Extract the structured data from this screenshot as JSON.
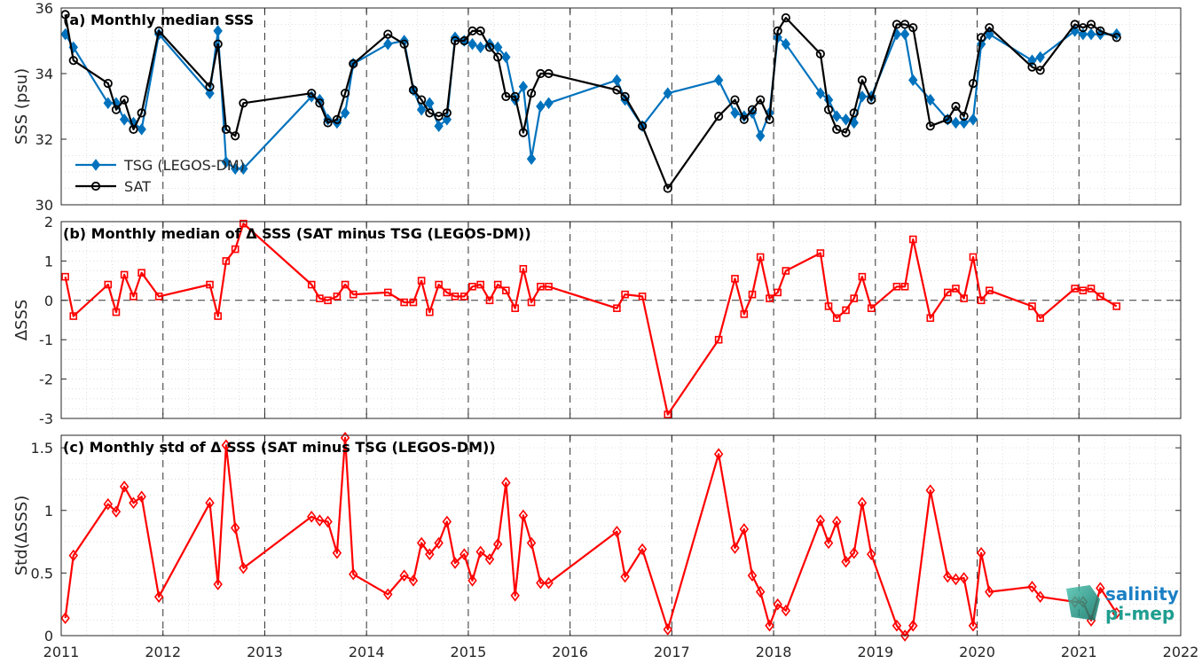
{
  "colors": {
    "tsg": "#0072BD",
    "sat": "#000000",
    "delta": "#FF0000",
    "grid": "#bfbfbf"
  },
  "logo": {
    "line1": "salinity",
    "line2": "pi-mep"
  },
  "chart_data": [
    {
      "type": "line",
      "title": "(a) Monthly median SSS",
      "ylabel": "SSS (psu)",
      "xlim": [
        2011,
        2022
      ],
      "ylim": [
        30,
        36
      ],
      "yticks": [
        30,
        32,
        34,
        36
      ],
      "legend": "bottom-left",
      "series": [
        {
          "name": "TSG (LEGOS-DM)",
          "marker": "diamond",
          "x": [
            2011.04,
            2011.12,
            2011.46,
            2011.54,
            2011.62,
            2011.71,
            2011.79,
            2011.96,
            2012.46,
            2012.54,
            2012.62,
            2012.71,
            2012.79,
            2013.46,
            2013.54,
            2013.62,
            2013.71,
            2013.79,
            2013.87,
            2014.21,
            2014.37,
            2014.46,
            2014.54,
            2014.62,
            2014.71,
            2014.79,
            2014.87,
            2014.96,
            2015.04,
            2015.12,
            2015.21,
            2015.29,
            2015.37,
            2015.46,
            2015.54,
            2015.62,
            2015.71,
            2015.79,
            2016.46,
            2016.54,
            2016.71,
            2016.96,
            2017.46,
            2017.62,
            2017.71,
            2017.79,
            2017.87,
            2017.96,
            2018.04,
            2018.12,
            2018.46,
            2018.54,
            2018.62,
            2018.71,
            2018.79,
            2018.87,
            2018.96,
            2019.21,
            2019.29,
            2019.37,
            2019.54,
            2019.71,
            2019.79,
            2019.87,
            2019.96,
            2020.04,
            2020.12,
            2020.54,
            2020.62,
            2020.96,
            2021.04,
            2021.12,
            2021.21,
            2021.37
          ],
          "y": [
            35.2,
            34.8,
            33.1,
            33.1,
            32.6,
            32.5,
            32.3,
            35.2,
            33.4,
            35.3,
            31.3,
            31.1,
            31.1,
            33.3,
            33.2,
            32.6,
            32.5,
            32.8,
            34.3,
            34.9,
            35.0,
            33.5,
            32.9,
            33.1,
            32.4,
            32.6,
            35.1,
            35.0,
            34.9,
            34.8,
            34.9,
            34.8,
            34.5,
            33.2,
            33.6,
            31.4,
            33.0,
            33.1,
            33.8,
            33.2,
            32.4,
            33.4,
            33.8,
            32.8,
            32.7,
            32.8,
            32.1,
            32.8,
            35.1,
            34.9,
            33.4,
            33.2,
            32.7,
            32.6,
            32.5,
            33.3,
            33.3,
            35.2,
            35.2,
            33.8,
            33.2,
            32.6,
            32.5,
            32.5,
            32.6,
            34.9,
            35.2,
            34.4,
            34.5,
            35.3,
            35.2,
            35.2,
            35.2,
            35.2
          ]
        },
        {
          "name": "SAT",
          "marker": "circle",
          "x": [
            2011.04,
            2011.12,
            2011.46,
            2011.54,
            2011.62,
            2011.71,
            2011.79,
            2011.96,
            2012.46,
            2012.54,
            2012.62,
            2012.71,
            2012.79,
            2013.46,
            2013.54,
            2013.62,
            2013.71,
            2013.79,
            2013.87,
            2014.21,
            2014.37,
            2014.46,
            2014.54,
            2014.62,
            2014.71,
            2014.79,
            2014.87,
            2014.96,
            2015.04,
            2015.12,
            2015.21,
            2015.29,
            2015.37,
            2015.46,
            2015.54,
            2015.62,
            2015.71,
            2015.79,
            2016.46,
            2016.54,
            2016.71,
            2016.96,
            2017.46,
            2017.62,
            2017.71,
            2017.79,
            2017.87,
            2017.96,
            2018.04,
            2018.12,
            2018.46,
            2018.54,
            2018.62,
            2018.71,
            2018.79,
            2018.87,
            2018.96,
            2019.21,
            2019.29,
            2019.37,
            2019.54,
            2019.71,
            2019.79,
            2019.87,
            2019.96,
            2020.04,
            2020.12,
            2020.54,
            2020.62,
            2020.96,
            2021.04,
            2021.12,
            2021.21,
            2021.37
          ],
          "y": [
            35.8,
            34.4,
            33.7,
            32.9,
            33.2,
            32.3,
            32.8,
            35.3,
            33.6,
            34.9,
            32.3,
            32.1,
            33.1,
            33.4,
            33.1,
            32.5,
            32.6,
            33.4,
            34.3,
            35.2,
            34.9,
            33.5,
            33.2,
            32.8,
            32.7,
            32.8,
            35.0,
            35.0,
            35.3,
            35.3,
            34.8,
            34.5,
            33.3,
            33.3,
            32.2,
            33.4,
            34.0,
            34.0,
            33.5,
            33.3,
            32.4,
            30.5,
            32.7,
            33.2,
            32.6,
            32.9,
            33.2,
            32.6,
            35.3,
            35.7,
            34.6,
            32.9,
            32.3,
            32.2,
            32.8,
            33.8,
            33.2,
            35.5,
            35.5,
            35.4,
            32.4,
            32.6,
            33.0,
            32.7,
            33.7,
            35.1,
            35.4,
            34.2,
            34.1,
            35.5,
            35.4,
            35.5,
            35.3,
            35.1
          ]
        }
      ]
    },
    {
      "type": "line",
      "title": "(b) Monthly median of Δ SSS (SAT minus TSG (LEGOS-DM))",
      "ylabel": "ΔSSS",
      "xlim": [
        2011,
        2022
      ],
      "ylim": [
        -3,
        2
      ],
      "yticks": [
        -3,
        -2,
        -1,
        0,
        1,
        2
      ],
      "reference_line": 0,
      "series": [
        {
          "name": "",
          "marker": "square",
          "x": [
            2011.04,
            2011.12,
            2011.46,
            2011.54,
            2011.62,
            2011.71,
            2011.79,
            2011.96,
            2012.46,
            2012.54,
            2012.62,
            2012.71,
            2012.79,
            2013.46,
            2013.54,
            2013.62,
            2013.71,
            2013.79,
            2013.87,
            2014.21,
            2014.37,
            2014.46,
            2014.54,
            2014.62,
            2014.71,
            2014.79,
            2014.87,
            2014.96,
            2015.04,
            2015.12,
            2015.21,
            2015.29,
            2015.37,
            2015.46,
            2015.54,
            2015.62,
            2015.71,
            2015.79,
            2016.46,
            2016.54,
            2016.71,
            2016.96,
            2017.46,
            2017.62,
            2017.71,
            2017.79,
            2017.87,
            2017.96,
            2018.04,
            2018.12,
            2018.46,
            2018.54,
            2018.62,
            2018.71,
            2018.79,
            2018.87,
            2018.96,
            2019.21,
            2019.29,
            2019.37,
            2019.54,
            2019.71,
            2019.79,
            2019.87,
            2019.96,
            2020.04,
            2020.12,
            2020.54,
            2020.62,
            2020.96,
            2021.04,
            2021.12,
            2021.21,
            2021.37
          ],
          "y": [
            0.6,
            -0.4,
            0.4,
            -0.3,
            0.65,
            0.1,
            0.7,
            0.1,
            0.4,
            -0.4,
            1.0,
            1.3,
            1.95,
            0.4,
            0.05,
            0.0,
            0.1,
            0.4,
            0.15,
            0.2,
            -0.05,
            -0.05,
            0.5,
            -0.3,
            0.4,
            0.2,
            0.1,
            0.1,
            0.35,
            0.4,
            0.0,
            0.4,
            0.25,
            -0.2,
            0.8,
            -0.05,
            0.35,
            0.35,
            -0.2,
            0.15,
            0.1,
            -2.9,
            -1.0,
            0.55,
            -0.35,
            0.15,
            1.1,
            0.05,
            0.2,
            0.75,
            1.2,
            -0.15,
            -0.45,
            -0.25,
            0.05,
            0.6,
            -0.2,
            0.35,
            0.35,
            1.55,
            -0.45,
            0.2,
            0.3,
            0.05,
            1.1,
            0.0,
            0.25,
            -0.15,
            -0.45,
            0.3,
            0.25,
            0.3,
            0.1,
            -0.15
          ]
        }
      ]
    },
    {
      "type": "line",
      "title": "(c) Monthly std of Δ SSS (SAT minus TSG (LEGOS-DM))",
      "ylabel": "Std(ΔSSS)",
      "xlim": [
        2011,
        2022
      ],
      "ylim": [
        0,
        1.6
      ],
      "yticks": [
        0,
        0.5,
        1,
        1.5
      ],
      "xticks": [
        2011,
        2012,
        2013,
        2014,
        2015,
        2016,
        2017,
        2018,
        2019,
        2020,
        2021,
        2022
      ],
      "series": [
        {
          "name": "",
          "marker": "diamond",
          "x": [
            2011.04,
            2011.12,
            2011.46,
            2011.54,
            2011.62,
            2011.71,
            2011.79,
            2011.96,
            2012.46,
            2012.54,
            2012.62,
            2012.71,
            2012.79,
            2013.46,
            2013.54,
            2013.62,
            2013.71,
            2013.79,
            2013.87,
            2014.21,
            2014.37,
            2014.46,
            2014.54,
            2014.62,
            2014.71,
            2014.79,
            2014.87,
            2014.96,
            2015.04,
            2015.12,
            2015.21,
            2015.29,
            2015.37,
            2015.46,
            2015.54,
            2015.62,
            2015.71,
            2015.79,
            2016.46,
            2016.54,
            2016.71,
            2016.96,
            2017.46,
            2017.62,
            2017.71,
            2017.79,
            2017.87,
            2017.96,
            2018.04,
            2018.12,
            2018.46,
            2018.54,
            2018.62,
            2018.71,
            2018.79,
            2018.87,
            2018.96,
            2019.21,
            2019.29,
            2019.37,
            2019.54,
            2019.71,
            2019.79,
            2019.87,
            2019.96,
            2020.04,
            2020.12,
            2020.54,
            2020.62,
            2020.96,
            2021.04,
            2021.12,
            2021.21,
            2021.37
          ],
          "y": [
            0.14,
            0.64,
            1.05,
            0.99,
            1.19,
            1.06,
            1.11,
            0.31,
            1.06,
            0.41,
            1.52,
            0.86,
            0.54,
            0.95,
            0.92,
            0.91,
            0.66,
            1.58,
            0.49,
            0.33,
            0.48,
            0.44,
            0.74,
            0.65,
            0.74,
            0.91,
            0.58,
            0.65,
            0.44,
            0.67,
            0.61,
            0.73,
            1.22,
            0.32,
            0.96,
            0.74,
            0.42,
            0.42,
            0.83,
            0.47,
            0.69,
            0.05,
            1.45,
            0.7,
            0.85,
            0.48,
            0.35,
            0.08,
            0.25,
            0.2,
            0.92,
            0.74,
            0.91,
            0.59,
            0.66,
            1.06,
            0.65,
            0.08,
            0.0,
            0.08,
            1.16,
            0.47,
            0.45,
            0.46,
            0.08,
            0.66,
            0.35,
            0.39,
            0.31,
            0.27,
            0.27,
            0.12,
            0.38,
            0.18
          ]
        }
      ]
    }
  ]
}
